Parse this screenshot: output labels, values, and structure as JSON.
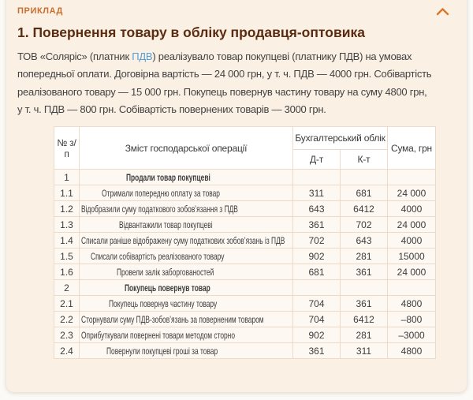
{
  "card": {
    "label": "ПРИКЛАД",
    "title": "1. Повернення товару в обліку продавця-оптовика",
    "collapse_icon": "chevron-up-icon"
  },
  "paragraph": {
    "line1_before": "ТОВ «Соляріс» (платник ",
    "line1_link": "ПДВ",
    "line1_after": ") реалізувало товар покупцеві (платнику ПДВ) на умовах",
    "line2": "попередньої оплати. Договірна вартість — 24 000 грн, у т. ч. ПДВ — 4000 грн. Собівартість",
    "line3": "реалізованого товару — 15 000 грн. Покупець повернув частину товару на суму 4800 грн,",
    "line4": "у т. ч. ПДВ — 800 грн. Собівартість повернених товарів — 3000 грн."
  },
  "table": {
    "headers": {
      "num": "№ з/п",
      "operation": "Зміст господарської операції",
      "accounting": "Бухгалтерський облік",
      "debit": "Д-т",
      "credit": "К-т",
      "sum": "Сума, грн"
    },
    "rows": [
      {
        "num": "1",
        "text": "Продали товар покупцеві",
        "dt": "",
        "kt": "",
        "sum": "",
        "section": true
      },
      {
        "num": "1.1",
        "text": "Отримали попередню оплату за товар",
        "dt": "311",
        "kt": "681",
        "sum": "24 000"
      },
      {
        "num": "1.2",
        "text": "Відобразили суму податкового зобов’язання з ПДВ",
        "dt": "643",
        "kt": "6412",
        "sum": "4000"
      },
      {
        "num": "1.3",
        "text": "Відвантажили товар покупцеві",
        "dt": "361",
        "kt": "702",
        "sum": "24 000"
      },
      {
        "num": "1.4",
        "text": "Списали раніше відображену суму податкових зобов’язань із ПДВ",
        "dt": "702",
        "kt": "643",
        "sum": "4000"
      },
      {
        "num": "1.5",
        "text": "Списали собівартість реалізованого товару",
        "dt": "902",
        "kt": "281",
        "sum": "15000"
      },
      {
        "num": "1.6",
        "text": "Провели залік заборгованостей",
        "dt": "681",
        "kt": "361",
        "sum": "24 000"
      },
      {
        "num": "2",
        "text": "Покупець повернув товар",
        "dt": "",
        "kt": "",
        "sum": "",
        "section": true
      },
      {
        "num": "2.1",
        "text": "Покупець повернув частину товару",
        "dt": "704",
        "kt": "361",
        "sum": "4800"
      },
      {
        "num": "2.2",
        "text": "Сторнували суму ПДВ-зобов’язань за поверненим товаром",
        "dt": "704",
        "kt": "6412",
        "sum": "–800"
      },
      {
        "num": "2.3",
        "text": "Оприбуткували повернені товари методом сторно",
        "dt": "902",
        "kt": "281",
        "sum": "–3000"
      },
      {
        "num": "2.4",
        "text": "Повернули покупцеві гроші за товар",
        "dt": "361",
        "kt": "311",
        "sum": "4800"
      }
    ]
  },
  "colors": {
    "accent_orange": "#ca6e2e",
    "title_brown": "#5b2c11",
    "link_blue": "#569fd6",
    "card_bg": "#faf0e4",
    "cell_bg": "#fdf8f2",
    "header_cell_bg": "#ffffff",
    "table_border": "#eedac9",
    "body_text": "#424242"
  }
}
